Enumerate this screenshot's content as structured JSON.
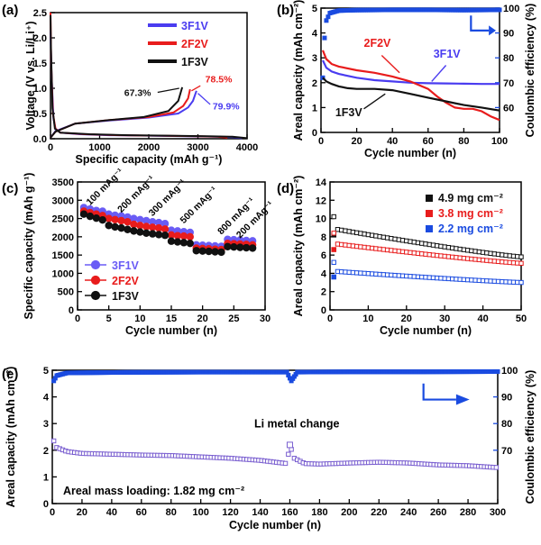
{
  "chart_data": [
    {
      "panel": "(a)",
      "type": "line",
      "xlabel": "Specific capacity (mAh g⁻¹)",
      "ylabel": "Voltage (V vs. Li/Li⁺)",
      "xlim": [
        0,
        4000
      ],
      "ylim": [
        0,
        2.5
      ],
      "xticks": [
        "0",
        "1000",
        "2000",
        "3000",
        "4000"
      ],
      "yticks": [
        "0.0",
        "0.5",
        "1.0",
        "1.5",
        "2.0",
        "2.5"
      ],
      "legend_position": "top-right",
      "series": [
        {
          "name": "3F1V",
          "color": "#4a3cf0",
          "discharge": [
            [
              0,
              2.15
            ],
            [
              20,
              1.3
            ],
            [
              60,
              0.4
            ],
            [
              100,
              0.2
            ],
            [
              200,
              0.12
            ],
            [
              600,
              0.09
            ],
            [
              1200,
              0.07
            ],
            [
              2000,
              0.06
            ],
            [
              2800,
              0.05
            ],
            [
              3400,
              0.04
            ],
            [
              3700,
              0.03
            ],
            [
              3900,
              0.01
            ]
          ],
          "charge": [
            [
              0,
              0.02
            ],
            [
              100,
              0.15
            ],
            [
              500,
              0.3
            ],
            [
              1200,
              0.36
            ],
            [
              2000,
              0.42
            ],
            [
              2600,
              0.5
            ],
            [
              2800,
              0.62
            ],
            [
              2900,
              0.75
            ],
            [
              2970,
              0.95
            ]
          ]
        },
        {
          "name": "2F2V",
          "color": "#e81c1c",
          "discharge": [
            [
              0,
              2.5
            ],
            [
              15,
              1.5
            ],
            [
              50,
              0.5
            ],
            [
              100,
              0.2
            ],
            [
              200,
              0.12
            ],
            [
              700,
              0.09
            ],
            [
              1400,
              0.07
            ],
            [
              2200,
              0.06
            ],
            [
              3000,
              0.05
            ],
            [
              3400,
              0.04
            ],
            [
              3600,
              0.02
            ]
          ],
          "charge": [
            [
              0,
              0.02
            ],
            [
              100,
              0.14
            ],
            [
              500,
              0.3
            ],
            [
              1200,
              0.37
            ],
            [
              2000,
              0.43
            ],
            [
              2500,
              0.52
            ],
            [
              2700,
              0.65
            ],
            [
              2800,
              0.8
            ],
            [
              2840,
              0.98
            ]
          ]
        },
        {
          "name": "1F3V",
          "color": "#111111",
          "discharge": [
            [
              0,
              2.45
            ],
            [
              10,
              1.8
            ],
            [
              40,
              0.6
            ],
            [
              90,
              0.2
            ],
            [
              200,
              0.12
            ],
            [
              800,
              0.09
            ],
            [
              1600,
              0.07
            ],
            [
              2400,
              0.06
            ],
            [
              3200,
              0.05
            ],
            [
              3700,
              0.04
            ],
            [
              4000,
              0.01
            ]
          ],
          "charge": [
            [
              0,
              0.02
            ],
            [
              100,
              0.14
            ],
            [
              500,
              0.3
            ],
            [
              1200,
              0.37
            ],
            [
              1900,
              0.43
            ],
            [
              2400,
              0.55
            ],
            [
              2600,
              0.75
            ],
            [
              2680,
              1.02
            ]
          ]
        }
      ],
      "annotations": [
        "78.5%",
        "67.3%",
        "79.9%"
      ]
    },
    {
      "panel": "(b)",
      "type": "line",
      "xlabel": "Cycle number (n)",
      "ylabel": "Areal capacity (mAh cm⁻²)",
      "y2label": "Coulombic efficiency (%)",
      "xlim": [
        0,
        100
      ],
      "ylim": [
        0,
        5
      ],
      "y2lim": [
        50,
        100
      ],
      "xticks": [
        "0",
        "20",
        "40",
        "60",
        "80",
        "100"
      ],
      "yticks": [
        "0",
        "1",
        "2",
        "3",
        "4",
        "5"
      ],
      "y2ticks": [
        "60",
        "70",
        "80",
        "90",
        "100"
      ],
      "labels": [
        "2F2V",
        "3F1V",
        "1F3V"
      ],
      "series": [
        {
          "name": "3F1V",
          "color": "#4a3cf0",
          "capacity": [
            [
              1,
              2.9
            ],
            [
              3,
              2.6
            ],
            [
              6,
              2.45
            ],
            [
              10,
              2.35
            ],
            [
              20,
              2.2
            ],
            [
              30,
              2.1
            ],
            [
              40,
              2.05
            ],
            [
              50,
              2.0
            ],
            [
              60,
              1.98
            ],
            [
              70,
              1.97
            ],
            [
              80,
              1.96
            ],
            [
              90,
              1.95
            ],
            [
              100,
              1.95
            ]
          ]
        },
        {
          "name": "2F2V",
          "color": "#e81c1c",
          "capacity": [
            [
              1,
              3.3
            ],
            [
              3,
              2.95
            ],
            [
              6,
              2.75
            ],
            [
              10,
              2.65
            ],
            [
              20,
              2.5
            ],
            [
              30,
              2.4
            ],
            [
              40,
              2.25
            ],
            [
              50,
              2.05
            ],
            [
              60,
              1.75
            ],
            [
              65,
              1.45
            ],
            [
              70,
              1.2
            ],
            [
              75,
              1.0
            ],
            [
              80,
              0.95
            ],
            [
              85,
              0.95
            ],
            [
              90,
              0.85
            ],
            [
              95,
              0.65
            ],
            [
              100,
              0.5
            ]
          ]
        },
        {
          "name": "1F3V",
          "color": "#111111",
          "capacity": [
            [
              1,
              2.2
            ],
            [
              3,
              2.05
            ],
            [
              6,
              1.95
            ],
            [
              10,
              1.85
            ],
            [
              15,
              1.78
            ],
            [
              20,
              1.75
            ],
            [
              25,
              1.75
            ],
            [
              30,
              1.75
            ],
            [
              40,
              1.7
            ],
            [
              50,
              1.55
            ],
            [
              60,
              1.4
            ],
            [
              70,
              1.25
            ],
            [
              80,
              1.1
            ],
            [
              90,
              1.0
            ],
            [
              100,
              0.88
            ]
          ]
        }
      ],
      "ce_series": {
        "color": "#1a4be0",
        "values": [
          [
            1,
            72
          ],
          [
            2,
            88
          ],
          [
            3,
            95
          ],
          [
            5,
            98
          ],
          [
            10,
            99
          ],
          [
            20,
            99.2
          ],
          [
            40,
            99.3
          ],
          [
            60,
            99.3
          ],
          [
            80,
            99.2
          ],
          [
            100,
            99.3
          ]
        ]
      }
    },
    {
      "panel": "(c)",
      "type": "scatter",
      "xlabel": "Cycle number (n)",
      "ylabel": "Specific capacity (mAh g⁻¹)",
      "xlim": [
        0,
        30
      ],
      "ylim": [
        0,
        3500
      ],
      "xticks": [
        "0",
        "5",
        "10",
        "15",
        "20",
        "25",
        "30"
      ],
      "yticks": [
        "0",
        "500",
        "1000",
        "1500",
        "2000",
        "2500",
        "3000",
        "3500"
      ],
      "rate_labels": [
        "100 mAg⁻¹",
        "200 mAg⁻¹",
        "300 mAg⁻¹",
        "500 mAg⁻¹",
        "800 mAg⁻¹",
        "200 mAg⁻¹"
      ],
      "series": [
        {
          "name": "3F1V",
          "color": "#6a5cf5",
          "values": [
            2800,
            2760,
            2720,
            2700,
            2620,
            2590,
            2570,
            2540,
            2500,
            2470,
            2440,
            2410,
            2390,
            2360,
            2180,
            2160,
            2140,
            2120,
            1780,
            1770,
            1760,
            1750,
            1740,
            1930,
            1920,
            1910,
            1900,
            1890
          ]
        },
        {
          "name": "2F2V",
          "color": "#e81c1c",
          "values": [
            2700,
            2660,
            2620,
            2580,
            2500,
            2470,
            2440,
            2410,
            2340,
            2310,
            2280,
            2260,
            2240,
            2210,
            2050,
            2030,
            2020,
            2000,
            1690,
            1680,
            1670,
            1660,
            1650,
            1820,
            1810,
            1800,
            1790,
            1780
          ]
        },
        {
          "name": "1F3V",
          "color": "#111111",
          "values": [
            2620,
            2560,
            2510,
            2460,
            2310,
            2270,
            2240,
            2200,
            2160,
            2130,
            2100,
            2080,
            2060,
            2040,
            1880,
            1860,
            1840,
            1820,
            1620,
            1610,
            1600,
            1590,
            1580,
            1730,
            1720,
            1710,
            1700,
            1690
          ]
        }
      ]
    },
    {
      "panel": "(d)",
      "type": "scatter",
      "xlabel": "Cycle number (n)",
      "ylabel": "Areal capacity (mAh cm⁻²)",
      "xlim": [
        0,
        50
      ],
      "ylim": [
        0,
        14
      ],
      "xticks": [
        "0",
        "10",
        "20",
        "30",
        "40",
        "50"
      ],
      "yticks": [
        "0",
        "2",
        "4",
        "6",
        "8",
        "10",
        "12",
        "14"
      ],
      "series": [
        {
          "name": "4.9 mg cm⁻²",
          "color": "#111111",
          "start": 10.2,
          "second": 8.8,
          "end": 5.8
        },
        {
          "name": "3.8 mg cm⁻²",
          "color": "#e81c1c",
          "start": 8.4,
          "second": 7.2,
          "end": 5.1
        },
        {
          "name": "2.2 mg cm⁻²",
          "color": "#1a4be0",
          "start": 5.2,
          "second": 4.2,
          "end": 3.0
        }
      ]
    },
    {
      "panel": "(e)",
      "type": "scatter",
      "xlabel": "Cycle number (n)",
      "ylabel": "Areal capacity (mAh cm⁻²)",
      "y2label": "Coulombic efficiency (%)",
      "xlim": [
        0,
        300
      ],
      "ylim": [
        0,
        5
      ],
      "y2lim": [
        50,
        100
      ],
      "xticks": [
        "0",
        "20",
        "40",
        "60",
        "80",
        "100",
        "120",
        "140",
        "160",
        "180",
        "200",
        "220",
        "240",
        "260",
        "280",
        "300"
      ],
      "yticks": [
        "0",
        "1",
        "2",
        "3",
        "4",
        "5"
      ],
      "y2ticks": [
        "70",
        "80",
        "90",
        "100"
      ],
      "annotation": "Li metal change",
      "note": "Areal mass loading: 1.82 mg cm⁻²",
      "capacity": [
        [
          1,
          2.35
        ],
        [
          3,
          2.1
        ],
        [
          10,
          1.95
        ],
        [
          20,
          1.88
        ],
        [
          40,
          1.85
        ],
        [
          60,
          1.82
        ],
        [
          80,
          1.8
        ],
        [
          100,
          1.75
        ],
        [
          120,
          1.7
        ],
        [
          140,
          1.62
        ],
        [
          158,
          1.5
        ],
        [
          160,
          2.2
        ],
        [
          163,
          1.7
        ],
        [
          170,
          1.5
        ],
        [
          180,
          1.48
        ],
        [
          200,
          1.52
        ],
        [
          220,
          1.55
        ],
        [
          240,
          1.52
        ],
        [
          260,
          1.45
        ],
        [
          280,
          1.42
        ],
        [
          300,
          1.35
        ]
      ],
      "ce": [
        [
          1,
          96
        ],
        [
          3,
          98
        ],
        [
          10,
          99
        ],
        [
          50,
          99.2
        ],
        [
          100,
          99.3
        ],
        [
          158,
          99.3
        ],
        [
          160,
          97
        ],
        [
          161,
          96
        ],
        [
          165,
          99.3
        ],
        [
          200,
          99.4
        ],
        [
          250,
          99.4
        ],
        [
          300,
          99.5
        ]
      ],
      "colors": {
        "capacity": "#7a5fd0",
        "ce": "#1a4be0"
      }
    }
  ]
}
